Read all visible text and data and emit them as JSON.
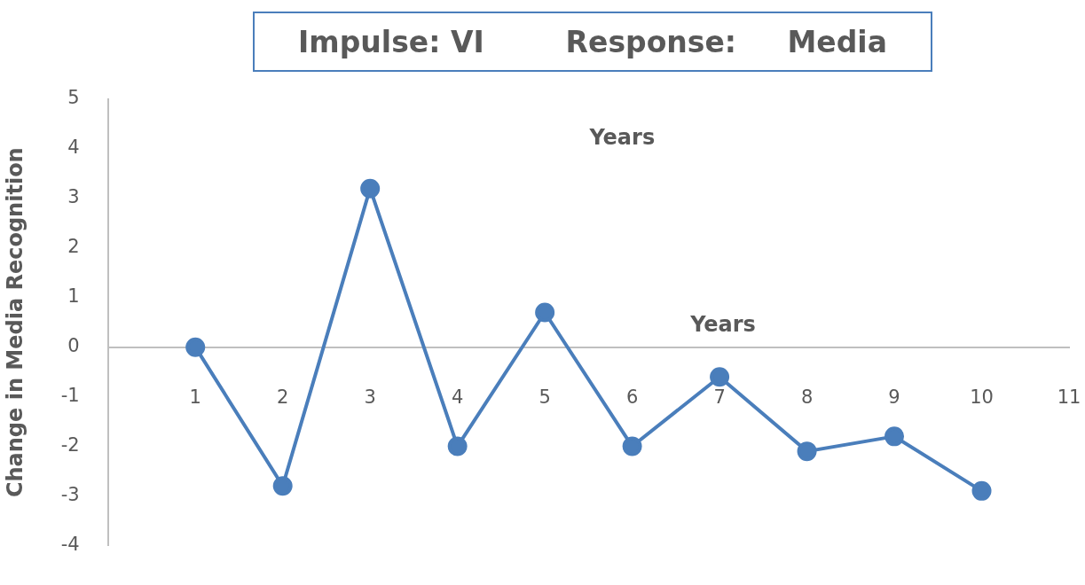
{
  "chart_data": {
    "type": "line",
    "title": "Impulse: VI        Response:     Media",
    "xlabel": "Years",
    "ylabel": "Change in Media Recognition",
    "annotations": [
      "Years"
    ],
    "x": [
      1,
      2,
      3,
      4,
      5,
      6,
      7,
      8,
      9,
      10
    ],
    "series": [
      {
        "color": "#4a7ebb",
        "values": [
          0,
          -2.8,
          3.2,
          -2,
          0.7,
          -2,
          -0.6,
          -2.1,
          -1.8,
          -2.9
        ]
      }
    ],
    "xlim": [
      0,
      11
    ],
    "xticks": [
      1,
      2,
      3,
      4,
      5,
      6,
      7,
      8,
      9,
      10,
      11
    ],
    "ylim": [
      -4,
      5
    ],
    "yticks": [
      -4,
      -3,
      -2,
      -1,
      0,
      1,
      2,
      3,
      4,
      5
    ],
    "grid": false,
    "legend": false,
    "marker": "circle",
    "line_style": "solid"
  }
}
